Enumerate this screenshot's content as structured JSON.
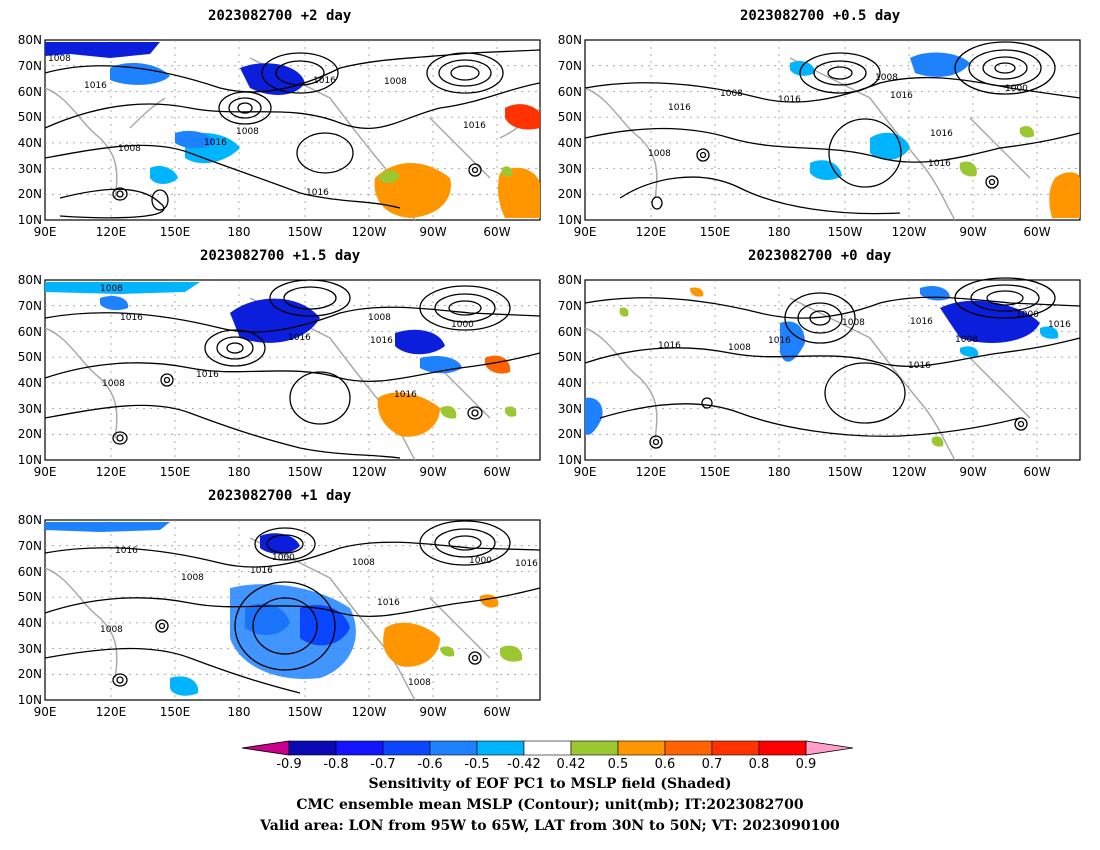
{
  "panels": [
    {
      "title": "2023082700 +2 day"
    },
    {
      "title": "2023082700 +0.5 day"
    },
    {
      "title": "2023082700 +1.5 day"
    },
    {
      "title": "2023082700 +0 day"
    },
    {
      "title": "2023082700 +1 day"
    }
  ],
  "map_axes": {
    "lat_labels": [
      "80N",
      "70N",
      "60N",
      "50N",
      "40N",
      "30N",
      "20N",
      "10N"
    ],
    "lon_labels": [
      "90E",
      "120E",
      "150E",
      "180",
      "150W",
      "120W",
      "90W",
      "60W"
    ]
  },
  "contour_labels": {
    "p0": [
      "1008",
      "1016",
      "1016",
      "1008",
      "1016",
      "1008",
      "1016",
      "1016",
      "1008"
    ],
    "p1": [
      "1008",
      "1016",
      "1008",
      "1016",
      "1016",
      "1008",
      "1016",
      "1016",
      "1000"
    ],
    "p2": [
      "1008",
      "1016",
      "1008",
      "1016",
      "1016",
      "1008",
      "1016",
      "1016",
      "1000"
    ],
    "p3": [
      "1016",
      "1008",
      "1016",
      "1008",
      "1016",
      "1008",
      "1016",
      "1016",
      "1000"
    ],
    "p4": [
      "1016",
      "1008",
      "1008",
      "1016",
      "1000",
      "1008",
      "1016",
      "1008",
      "1016",
      "1000"
    ]
  },
  "colorbar": {
    "ticks": [
      "-0.9",
      "-0.8",
      "-0.7",
      "-0.6",
      "-0.5",
      "-0.42",
      "0.42",
      "0.5",
      "0.6",
      "0.7",
      "0.8",
      "0.9"
    ],
    "colors": {
      "under": "#c8008c",
      "over": "#ff9ec8",
      "bins": [
        "#0a0ab4",
        "#1414ff",
        "#0a46ff",
        "#1e82ff",
        "#00b4ff",
        "#ffffff",
        "#9bc832",
        "#ff9600",
        "#ff6400",
        "#ff3200",
        "#ff0000"
      ]
    }
  },
  "shading_colors": {
    "neg_strong": "#0a1edc",
    "neg_mid": "#1e82ff",
    "neg_weak": "#00b4ff",
    "pos_weak": "#9bc832",
    "pos_mid": "#ff9600",
    "pos_strong": "#ff3200",
    "land": "#aaaaaa",
    "contour": "#000000"
  },
  "caption": [
    "Sensitivity of EOF PC1 to MSLP field (Shaded)",
    "CMC ensemble mean MSLP (Contour); unit(mb); IT:2023082700",
    "Valid area: LON from 95W to 65W, LAT from 30N to 50N; VT: 2023090100"
  ]
}
